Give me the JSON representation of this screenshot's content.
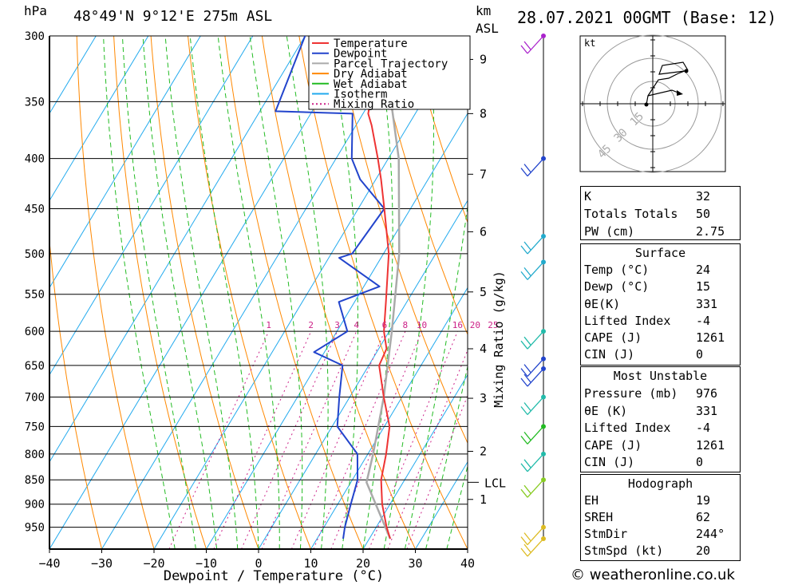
{
  "header": {
    "pressure_unit": "hPa",
    "location": "48°49'N 9°12'E 275m ASL",
    "height_unit": "km",
    "height_unit_sub": "ASL",
    "datetime": "28.07.2021 00GMT (Base: 12)"
  },
  "chart_data": {
    "type": "skew-t log-p",
    "xlabel": "Dewpoint / Temperature (°C)",
    "ylabel_right": "Mixing Ratio (g/kg)",
    "x_ticks": [
      -40,
      -30,
      -20,
      -10,
      0,
      10,
      20,
      30,
      40
    ],
    "pressure_levels": [
      300,
      350,
      400,
      450,
      500,
      550,
      600,
      650,
      700,
      750,
      800,
      850,
      900,
      950
    ],
    "height_ticks": [
      {
        "km": "1",
        "p": 890
      },
      {
        "km": "2",
        "p": 795
      },
      {
        "km": "3",
        "p": 702
      },
      {
        "km": "4",
        "p": 625
      },
      {
        "km": "5",
        "p": 547
      },
      {
        "km": "6",
        "p": 475
      },
      {
        "km": "7",
        "p": 415
      },
      {
        "km": "8",
        "p": 360
      },
      {
        "km": "9",
        "p": 317
      }
    ],
    "lcl": {
      "label": "LCL",
      "p": 855
    },
    "mixing_ratio_labels": [
      "1",
      "2",
      "3",
      "4",
      "6",
      "8",
      "10",
      "16",
      "20",
      "25"
    ],
    "mixing_ratio_values": [
      1,
      2,
      3,
      4,
      6,
      8,
      10,
      16,
      20,
      25
    ],
    "legend": [
      "Temperature",
      "Dewpoint",
      "Parcel Trajectory",
      "Dry Adiabat",
      "Wet Adiabat",
      "Isotherm",
      "Mixing Ratio"
    ],
    "colors": {
      "temperature": "#ee3333",
      "dewpoint": "#2244cc",
      "parcel": "#aaaaaa",
      "dry_adiabat": "#ff8800",
      "wet_adiabat": "#22bb22",
      "isotherm": "#22aaee",
      "mixing_ratio": "#cc2288"
    },
    "temperature": [
      {
        "p": 976,
        "t": 24
      },
      {
        "p": 950,
        "t": 22
      },
      {
        "p": 900,
        "t": 18.5
      },
      {
        "p": 850,
        "t": 15.5
      },
      {
        "p": 800,
        "t": 13.5
      },
      {
        "p": 750,
        "t": 11
      },
      {
        "p": 700,
        "t": 6.5
      },
      {
        "p": 650,
        "t": 2
      },
      {
        "p": 625,
        "t": 1.5
      },
      {
        "p": 600,
        "t": -1
      },
      {
        "p": 560,
        "t": -4
      },
      {
        "p": 500,
        "t": -9
      },
      {
        "p": 450,
        "t": -15
      },
      {
        "p": 420,
        "t": -19
      },
      {
        "p": 400,
        "t": -22
      },
      {
        "p": 370,
        "t": -27
      },
      {
        "p": 360,
        "t": -29
      },
      {
        "p": 340,
        "t": -31
      },
      {
        "p": 300,
        "t": -38
      }
    ],
    "dewpoint": [
      {
        "p": 976,
        "t": 15
      },
      {
        "p": 950,
        "t": 14
      },
      {
        "p": 900,
        "t": 12.5
      },
      {
        "p": 850,
        "t": 11
      },
      {
        "p": 800,
        "t": 8
      },
      {
        "p": 750,
        "t": 1
      },
      {
        "p": 700,
        "t": -2
      },
      {
        "p": 650,
        "t": -5
      },
      {
        "p": 630,
        "t": -12
      },
      {
        "p": 600,
        "t": -8
      },
      {
        "p": 560,
        "t": -13
      },
      {
        "p": 540,
        "t": -7
      },
      {
        "p": 505,
        "t": -18
      },
      {
        "p": 500,
        "t": -16
      },
      {
        "p": 450,
        "t": -15
      },
      {
        "p": 420,
        "t": -23
      },
      {
        "p": 400,
        "t": -27
      },
      {
        "p": 360,
        "t": -32
      },
      {
        "p": 358,
        "t": -47
      },
      {
        "p": 300,
        "t": -50
      }
    ],
    "parcel": [
      {
        "p": 976,
        "t": 24
      },
      {
        "p": 855,
        "t": 13
      },
      {
        "p": 800,
        "t": 11
      },
      {
        "p": 700,
        "t": 6.5
      },
      {
        "p": 600,
        "t": 0.5
      },
      {
        "p": 500,
        "t": -7
      },
      {
        "p": 400,
        "t": -18
      },
      {
        "p": 350,
        "t": -26
      },
      {
        "p": 300,
        "t": -35
      }
    ],
    "wind_barbs": [
      {
        "p": 300,
        "color": "#aa22cc"
      },
      {
        "p": 400,
        "color": "#2244cc"
      },
      {
        "p": 480,
        "color": "#22aacc"
      },
      {
        "p": 510,
        "color": "#22aacc"
      },
      {
        "p": 600,
        "color": "#22bbaa"
      },
      {
        "p": 640,
        "color": "#2244cc"
      },
      {
        "p": 655,
        "color": "#2244cc"
      },
      {
        "p": 700,
        "color": "#22bbaa"
      },
      {
        "p": 750,
        "color": "#22bb22"
      },
      {
        "p": 800,
        "color": "#22bbaa"
      },
      {
        "p": 850,
        "color": "#88cc22"
      },
      {
        "p": 950,
        "color": "#ddbb22"
      },
      {
        "p": 976,
        "color": "#ddbb22"
      }
    ]
  },
  "hodograph": {
    "unit": "kt",
    "ring_labels": [
      "15",
      "30",
      "45"
    ]
  },
  "indices": {
    "k_label": "K",
    "k": "32",
    "tt_label": "Totals Totals",
    "tt": "50",
    "pw_label": "PW (cm)",
    "pw": "2.75"
  },
  "surface": {
    "title": "Surface",
    "temp_label": "Temp (°C)",
    "temp": "24",
    "dewp_label": "Dewp (°C)",
    "dewp": "15",
    "theta_label": "θE(K)",
    "theta": "331",
    "li_label": "Lifted Index",
    "li": "-4",
    "cape_label": "CAPE (J)",
    "cape": "1261",
    "cin_label": "CIN (J)",
    "cin": "0"
  },
  "most_unstable": {
    "title": "Most Unstable",
    "pressure_label": "Pressure (mb)",
    "pressure": "976",
    "theta_label": "θE (K)",
    "theta": "331",
    "li_label": "Lifted Index",
    "li": "-4",
    "cape_label": "CAPE (J)",
    "cape": "1261",
    "cin_label": "CIN (J)",
    "cin": "0"
  },
  "hodo_stats": {
    "title": "Hodograph",
    "eh_label": "EH",
    "eh": "19",
    "sreh_label": "SREH",
    "sreh": "62",
    "stmdir_label": "StmDir",
    "stmdir": "244°",
    "stmspd_label": "StmSpd (kt)",
    "stmspd": "20"
  },
  "footer": {
    "copyright": "© weatheronline.co.uk"
  }
}
